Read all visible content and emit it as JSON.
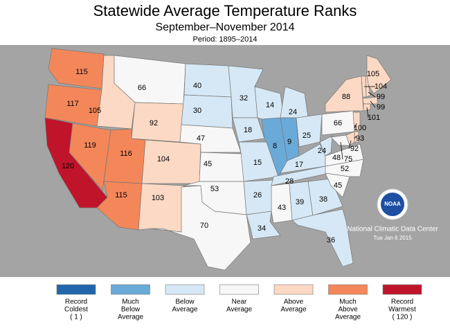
{
  "title": "Statewide Average Temperature Ranks",
  "subtitle": "September–November 2014",
  "period": "Period: 1895–2014",
  "footer": {
    "logo": "NOAA",
    "agency": "National Climatic Data Center",
    "date": "Tue Jan  6 2015"
  },
  "states": [
    {
      "rank": 115,
      "color": "#f4875a"
    },
    {
      "rank": 117,
      "color": "#f4875a"
    },
    {
      "rank": 120,
      "color": "#c0142a"
    },
    {
      "rank": 119,
      "color": "#f4875a"
    },
    {
      "rank": 105,
      "color": "#fcd9c4"
    },
    {
      "rank": 66,
      "color": "#f7f7f7"
    },
    {
      "rank": 92,
      "color": "#fcd9c4"
    },
    {
      "rank": 116,
      "color": "#f4875a"
    },
    {
      "rank": 104,
      "color": "#fcd9c4"
    },
    {
      "rank": 115,
      "color": "#f4875a"
    },
    {
      "rank": 103,
      "color": "#fcd9c4"
    },
    {
      "rank": 40,
      "color": "#d6e8f5"
    },
    {
      "rank": 30,
      "color": "#d6e8f5"
    },
    {
      "rank": 47,
      "color": "#f7f7f7"
    },
    {
      "rank": 45,
      "color": "#f7f7f7"
    },
    {
      "rank": 53,
      "color": "#f7f7f7"
    },
    {
      "rank": 70,
      "color": "#f7f7f7"
    },
    {
      "rank": 32,
      "color": "#d6e8f5"
    },
    {
      "rank": 18,
      "color": "#d6e8f5"
    },
    {
      "rank": 15,
      "color": "#d6e8f5"
    },
    {
      "rank": 26,
      "color": "#d6e8f5"
    },
    {
      "rank": 34,
      "color": "#d6e8f5"
    },
    {
      "rank": 14,
      "color": "#d6e8f5"
    },
    {
      "rank": 8,
      "color": "#6aaad9"
    },
    {
      "rank": 9,
      "color": "#6aaad9"
    },
    {
      "rank": 24,
      "color": "#d6e8f5"
    },
    {
      "rank": 25,
      "color": "#d6e8f5"
    },
    {
      "rank": 17,
      "color": "#d6e8f5"
    },
    {
      "rank": 28,
      "color": "#d6e8f5"
    },
    {
      "rank": 43,
      "color": "#f7f7f7"
    },
    {
      "rank": 39,
      "color": "#d6e8f5"
    },
    {
      "rank": 38,
      "color": "#d6e8f5"
    },
    {
      "rank": 36,
      "color": "#d6e8f5"
    },
    {
      "rank": 45,
      "color": "#f7f7f7"
    },
    {
      "rank": 52,
      "color": "#f7f7f7"
    },
    {
      "rank": 48,
      "color": "#f7f7f7"
    },
    {
      "rank": 24,
      "color": "#d6e8f5"
    },
    {
      "rank": 66,
      "color": "#f7f7f7"
    },
    {
      "rank": 88,
      "color": "#fcd9c4"
    },
    {
      "rank": 105,
      "color": "#fcd9c4"
    },
    {
      "rank": 104,
      "color": "#fcd9c4"
    },
    {
      "rank": 99,
      "color": "#fcd9c4"
    },
    {
      "rank": 99,
      "color": "#fcd9c4"
    },
    {
      "rank": 101,
      "color": "#fcd9c4"
    },
    {
      "rank": 100,
      "color": "#fcd9c4"
    },
    {
      "rank": 93,
      "color": "#fcd9c4"
    },
    {
      "rank": 92,
      "color": "#fcd9c4"
    },
    {
      "rank": 75,
      "color": "#f7f7f7"
    }
  ],
  "legend": [
    {
      "lines": [
        "Record",
        "Coldest",
        "( 1 )"
      ],
      "color": "#2166ac"
    },
    {
      "lines": [
        "Much",
        "Below",
        "Average"
      ],
      "color": "#6aaad9"
    },
    {
      "lines": [
        "Below",
        "Average"
      ],
      "color": "#d6e8f5"
    },
    {
      "lines": [
        "Near",
        "Average"
      ],
      "color": "#f7f7f7"
    },
    {
      "lines": [
        "Above",
        "Average"
      ],
      "color": "#fcd9c4"
    },
    {
      "lines": [
        "Much",
        "Above",
        "Average"
      ],
      "color": "#f4875a"
    },
    {
      "lines": [
        "Record",
        "Warmest",
        "( 120 )"
      ],
      "color": "#c0142a"
    }
  ]
}
